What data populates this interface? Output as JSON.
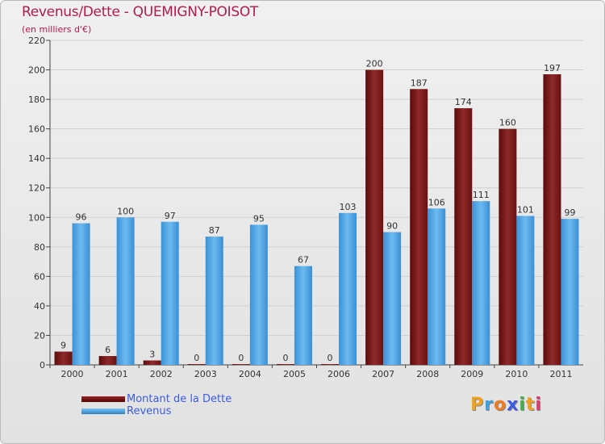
{
  "chart_title": "Revenus/Dette - QUEMIGNY-POISOT",
  "chart_subtitle": "(en milliers d'€)",
  "logo_text": "Proxiti",
  "colors": {
    "debt": "#7a1616",
    "revenue": "#4da3e0",
    "title": "#b31a4c",
    "legend_text": "#3b5ce0"
  },
  "chart_data": {
    "type": "bar",
    "categories": [
      "2000",
      "2001",
      "2002",
      "2003",
      "2004",
      "2005",
      "2006",
      "2007",
      "2008",
      "2009",
      "2010",
      "2011"
    ],
    "series": [
      {
        "name": "Montant de la Dette",
        "values": [
          9,
          6,
          3,
          0,
          0,
          0,
          0,
          200,
          187,
          174,
          160,
          197
        ]
      },
      {
        "name": "Revenus",
        "values": [
          96,
          100,
          97,
          87,
          95,
          67,
          103,
          90,
          106,
          111,
          101,
          99
        ]
      }
    ],
    "ylim": [
      0,
      220
    ],
    "yticks": [
      0,
      20,
      40,
      60,
      80,
      100,
      120,
      140,
      160,
      180,
      200,
      220
    ],
    "grid": true,
    "legend_position": "bottom-left"
  }
}
